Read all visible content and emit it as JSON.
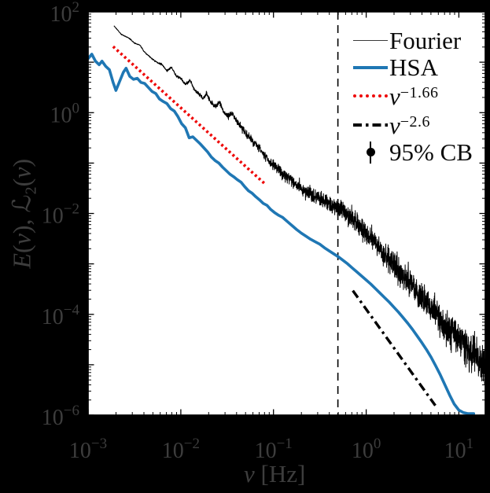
{
  "figure": {
    "background_color": "#000000",
    "plot_background": "#ffffff",
    "outside_text_color": "#3d3d3d",
    "axis_line_color": "#000000"
  },
  "chart_data": {
    "type": "line",
    "title": "",
    "x_scale": "log",
    "y_scale": "log",
    "xlabel": {
      "symbol": "ν",
      "unit": "[Hz]"
    },
    "ylabel": {
      "e": "E",
      "arg": "(ν)",
      "sep": ", ",
      "cal_l": "ℒ",
      "sub": "2"
    },
    "x_domain_log10": [
      -3,
      1.285
    ],
    "y_domain_log10": [
      -6,
      2
    ],
    "x_tick_exponents": [
      -3,
      -2,
      -1,
      0,
      1
    ],
    "x_tick_base": "10",
    "y_tick_exponents": [
      2,
      0,
      -2,
      -4,
      -6
    ],
    "y_tick_base": "10",
    "minus_sign": "−",
    "vline": {
      "x_hz": 0.5,
      "log10x": -0.305,
      "style": "dashed",
      "color": "#000000"
    },
    "series": [
      {
        "name": "Fourier",
        "color": "#000000",
        "style": "noisy-solid",
        "width": 1.0,
        "noise": {
          "seed": 7,
          "points": 2600,
          "amp_min": 0.008,
          "amp_max": 0.435,
          "amp_pow": 1.8,
          "second_scale": 0.55
        },
        "backbone_log10": [
          [
            -2.72,
            1.72
          ],
          [
            -2.64,
            1.55
          ],
          [
            -2.56,
            1.48
          ],
          [
            -2.5,
            1.38
          ],
          [
            -2.44,
            1.34
          ],
          [
            -2.4,
            1.22
          ],
          [
            -2.33,
            1.1
          ],
          [
            -2.26,
            1.0
          ],
          [
            -2.2,
            0.95
          ],
          [
            -2.15,
            0.83
          ],
          [
            -2.1,
            0.9
          ],
          [
            -2.05,
            0.73
          ],
          [
            -2.0,
            0.68
          ],
          [
            -1.95,
            0.56
          ],
          [
            -1.9,
            0.64
          ],
          [
            -1.86,
            0.48
          ],
          [
            -1.81,
            0.38
          ],
          [
            -1.76,
            0.28
          ],
          [
            -1.72,
            0.38
          ],
          [
            -1.68,
            0.22
          ],
          [
            -1.63,
            0.12
          ],
          [
            -1.58,
            0.2
          ],
          [
            -1.54,
            0.02
          ],
          [
            -1.49,
            -0.08
          ],
          [
            -1.45,
            0.0
          ],
          [
            -1.4,
            -0.16
          ],
          [
            -1.35,
            -0.28
          ],
          [
            -1.3,
            -0.42
          ],
          [
            -1.25,
            -0.5
          ],
          [
            -1.2,
            -0.62
          ],
          [
            -1.15,
            -0.72
          ],
          [
            -1.1,
            -0.85
          ],
          [
            -1.05,
            -0.95
          ],
          [
            -1.0,
            -1.05
          ],
          [
            -0.94,
            -1.15
          ],
          [
            -0.88,
            -1.25
          ],
          [
            -0.82,
            -1.33
          ],
          [
            -0.76,
            -1.42
          ],
          [
            -0.7,
            -1.5
          ],
          [
            -0.64,
            -1.57
          ],
          [
            -0.58,
            -1.64
          ],
          [
            -0.52,
            -1.7
          ],
          [
            -0.46,
            -1.76
          ],
          [
            -0.4,
            -1.81
          ],
          [
            -0.34,
            -1.87
          ],
          [
            -0.28,
            -1.93
          ],
          [
            -0.22,
            -2.0
          ],
          [
            -0.16,
            -2.08
          ],
          [
            -0.1,
            -2.18
          ],
          [
            -0.04,
            -2.3
          ],
          [
            0.02,
            -2.42
          ],
          [
            0.08,
            -2.55
          ],
          [
            0.14,
            -2.68
          ],
          [
            0.2,
            -2.8
          ],
          [
            0.26,
            -2.93
          ],
          [
            0.32,
            -3.06
          ],
          [
            0.38,
            -3.19
          ],
          [
            0.44,
            -3.32
          ],
          [
            0.5,
            -3.45
          ],
          [
            0.56,
            -3.58
          ],
          [
            0.62,
            -3.71
          ],
          [
            0.68,
            -3.84
          ],
          [
            0.74,
            -3.97
          ],
          [
            0.8,
            -4.1
          ],
          [
            0.86,
            -4.22
          ],
          [
            0.92,
            -4.34
          ],
          [
            0.98,
            -4.46
          ],
          [
            1.04,
            -4.58
          ],
          [
            1.1,
            -4.7
          ],
          [
            1.16,
            -4.81
          ],
          [
            1.22,
            -4.92
          ],
          [
            1.285,
            -5.05
          ]
        ]
      },
      {
        "name": "HSA",
        "color": "#1f77b4",
        "style": "solid",
        "width": 3.6,
        "backbone_log10": [
          [
            -3.0,
            1.07
          ],
          [
            -2.96,
            1.16
          ],
          [
            -2.92,
            1.02
          ],
          [
            -2.88,
            0.95
          ],
          [
            -2.85,
            1.02
          ],
          [
            -2.81,
            0.92
          ],
          [
            -2.77,
            0.85
          ],
          [
            -2.73,
            0.6
          ],
          [
            -2.7,
            0.44
          ],
          [
            -2.66,
            0.62
          ],
          [
            -2.62,
            0.8
          ],
          [
            -2.59,
            0.88
          ],
          [
            -2.55,
            0.72
          ],
          [
            -2.51,
            0.66
          ],
          [
            -2.47,
            0.68
          ],
          [
            -2.43,
            0.6
          ],
          [
            -2.39,
            0.58
          ],
          [
            -2.35,
            0.5
          ],
          [
            -2.31,
            0.42
          ],
          [
            -2.27,
            0.38
          ],
          [
            -2.23,
            0.27
          ],
          [
            -2.19,
            0.22
          ],
          [
            -2.15,
            0.18
          ],
          [
            -2.11,
            0.08
          ],
          [
            -2.07,
            0.03
          ],
          [
            -2.03,
            -0.08
          ],
          [
            -1.99,
            -0.22
          ],
          [
            -1.95,
            -0.3
          ],
          [
            -1.91,
            -0.5
          ],
          [
            -1.87,
            -0.48
          ],
          [
            -1.83,
            -0.55
          ],
          [
            -1.79,
            -0.62
          ],
          [
            -1.75,
            -0.7
          ],
          [
            -1.71,
            -0.78
          ],
          [
            -1.67,
            -0.88
          ],
          [
            -1.63,
            -0.95
          ],
          [
            -1.59,
            -1.0
          ],
          [
            -1.55,
            -1.08
          ],
          [
            -1.51,
            -1.15
          ],
          [
            -1.47,
            -1.22
          ],
          [
            -1.43,
            -1.27
          ],
          [
            -1.39,
            -1.33
          ],
          [
            -1.35,
            -1.38
          ],
          [
            -1.31,
            -1.47
          ],
          [
            -1.27,
            -1.55
          ],
          [
            -1.23,
            -1.6
          ],
          [
            -1.19,
            -1.67
          ],
          [
            -1.15,
            -1.73
          ],
          [
            -1.11,
            -1.8
          ],
          [
            -1.07,
            -1.84
          ],
          [
            -1.03,
            -1.92
          ],
          [
            -0.99,
            -1.98
          ],
          [
            -0.95,
            -2.03
          ],
          [
            -0.9,
            -2.08
          ],
          [
            -0.85,
            -2.16
          ],
          [
            -0.8,
            -2.24
          ],
          [
            -0.75,
            -2.32
          ],
          [
            -0.7,
            -2.39
          ],
          [
            -0.65,
            -2.45
          ],
          [
            -0.6,
            -2.51
          ],
          [
            -0.55,
            -2.56
          ],
          [
            -0.5,
            -2.61
          ],
          [
            -0.45,
            -2.68
          ],
          [
            -0.4,
            -2.74
          ],
          [
            -0.35,
            -2.8
          ],
          [
            -0.3,
            -2.86
          ],
          [
            -0.25,
            -2.93
          ],
          [
            -0.2,
            -3.0
          ],
          [
            -0.15,
            -3.08
          ],
          [
            -0.1,
            -3.16
          ],
          [
            -0.05,
            -3.24
          ],
          [
            0.0,
            -3.32
          ],
          [
            0.05,
            -3.4
          ],
          [
            0.1,
            -3.49
          ],
          [
            0.15,
            -3.58
          ],
          [
            0.2,
            -3.67
          ],
          [
            0.25,
            -3.76
          ],
          [
            0.3,
            -3.86
          ],
          [
            0.35,
            -3.96
          ],
          [
            0.4,
            -4.07
          ],
          [
            0.45,
            -4.18
          ],
          [
            0.5,
            -4.3
          ],
          [
            0.55,
            -4.43
          ],
          [
            0.6,
            -4.56
          ],
          [
            0.65,
            -4.7
          ],
          [
            0.7,
            -4.85
          ],
          [
            0.75,
            -5.02
          ],
          [
            0.8,
            -5.2
          ],
          [
            0.85,
            -5.4
          ],
          [
            0.9,
            -5.6
          ],
          [
            0.95,
            -5.78
          ],
          [
            1.0,
            -5.9
          ],
          [
            1.05,
            -5.95
          ],
          [
            1.1,
            -5.97
          ],
          [
            1.16,
            -5.97
          ]
        ]
      },
      {
        "name": "nu^-1.66 reference",
        "slope": -1.66,
        "color": "#ee0a0a",
        "style": "dotted",
        "width": 3.6,
        "points_log10": [
          [
            -2.73,
            1.31
          ],
          [
            -1.1,
            -1.4
          ]
        ]
      },
      {
        "name": "nu^-2.6 reference",
        "slope": -2.6,
        "color": "#000000",
        "style": "dashdot",
        "width": 3.4,
        "points_log10": [
          [
            -0.144,
            -3.53
          ],
          [
            0.746,
            -5.81
          ]
        ]
      }
    ],
    "legend": [
      {
        "sample": "thin",
        "label": "Fourier",
        "sup": ""
      },
      {
        "sample": "thick",
        "label": "HSA",
        "sup": ""
      },
      {
        "sample": "dotted",
        "label": "ν",
        "sup": "−1.66"
      },
      {
        "sample": "dashdot",
        "label": "ν",
        "sup": "−2.6"
      },
      {
        "sample": "marker",
        "label": "95% CB",
        "sup": ""
      }
    ],
    "legend_position": "top-right",
    "grid": false
  }
}
